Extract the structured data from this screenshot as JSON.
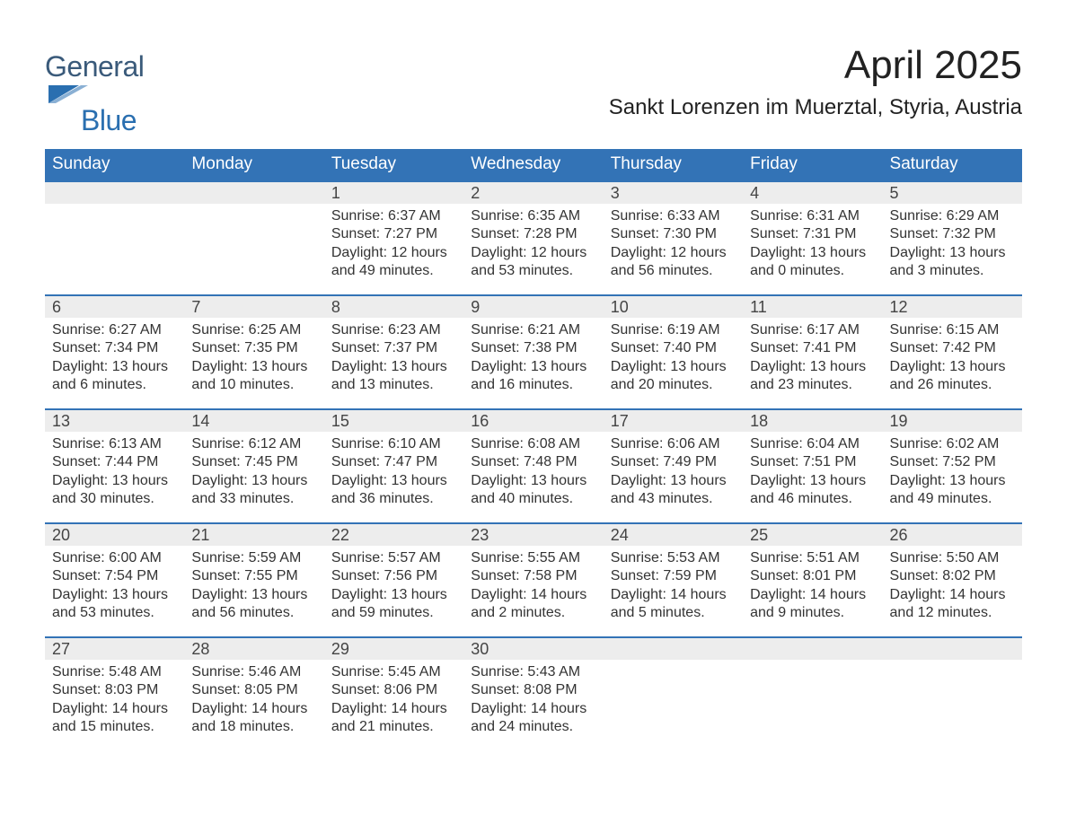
{
  "logo": {
    "text1": "General",
    "text2": "Blue",
    "triangle_color": "#2a6fb0"
  },
  "title": "April 2025",
  "location": "Sankt Lorenzen im Muerztal, Styria, Austria",
  "colors": {
    "header_bg": "#3373b6",
    "header_text": "#ffffff",
    "daynum_bg": "#ededed",
    "body_text": "#333333",
    "week_border": "#3373b6",
    "background": "#ffffff"
  },
  "typography": {
    "title_fontsize": 44,
    "location_fontsize": 24,
    "dayheader_fontsize": 19,
    "daynum_fontsize": 18,
    "body_fontsize": 16
  },
  "calendar": {
    "type": "table",
    "day_headers": [
      "Sunday",
      "Monday",
      "Tuesday",
      "Wednesday",
      "Thursday",
      "Friday",
      "Saturday"
    ],
    "weeks": [
      [
        null,
        null,
        {
          "n": "1",
          "sunrise": "Sunrise: 6:37 AM",
          "sunset": "Sunset: 7:27 PM",
          "dl1": "Daylight: 12 hours",
          "dl2": "and 49 minutes."
        },
        {
          "n": "2",
          "sunrise": "Sunrise: 6:35 AM",
          "sunset": "Sunset: 7:28 PM",
          "dl1": "Daylight: 12 hours",
          "dl2": "and 53 minutes."
        },
        {
          "n": "3",
          "sunrise": "Sunrise: 6:33 AM",
          "sunset": "Sunset: 7:30 PM",
          "dl1": "Daylight: 12 hours",
          "dl2": "and 56 minutes."
        },
        {
          "n": "4",
          "sunrise": "Sunrise: 6:31 AM",
          "sunset": "Sunset: 7:31 PM",
          "dl1": "Daylight: 13 hours",
          "dl2": "and 0 minutes."
        },
        {
          "n": "5",
          "sunrise": "Sunrise: 6:29 AM",
          "sunset": "Sunset: 7:32 PM",
          "dl1": "Daylight: 13 hours",
          "dl2": "and 3 minutes."
        }
      ],
      [
        {
          "n": "6",
          "sunrise": "Sunrise: 6:27 AM",
          "sunset": "Sunset: 7:34 PM",
          "dl1": "Daylight: 13 hours",
          "dl2": "and 6 minutes."
        },
        {
          "n": "7",
          "sunrise": "Sunrise: 6:25 AM",
          "sunset": "Sunset: 7:35 PM",
          "dl1": "Daylight: 13 hours",
          "dl2": "and 10 minutes."
        },
        {
          "n": "8",
          "sunrise": "Sunrise: 6:23 AM",
          "sunset": "Sunset: 7:37 PM",
          "dl1": "Daylight: 13 hours",
          "dl2": "and 13 minutes."
        },
        {
          "n": "9",
          "sunrise": "Sunrise: 6:21 AM",
          "sunset": "Sunset: 7:38 PM",
          "dl1": "Daylight: 13 hours",
          "dl2": "and 16 minutes."
        },
        {
          "n": "10",
          "sunrise": "Sunrise: 6:19 AM",
          "sunset": "Sunset: 7:40 PM",
          "dl1": "Daylight: 13 hours",
          "dl2": "and 20 minutes."
        },
        {
          "n": "11",
          "sunrise": "Sunrise: 6:17 AM",
          "sunset": "Sunset: 7:41 PM",
          "dl1": "Daylight: 13 hours",
          "dl2": "and 23 minutes."
        },
        {
          "n": "12",
          "sunrise": "Sunrise: 6:15 AM",
          "sunset": "Sunset: 7:42 PM",
          "dl1": "Daylight: 13 hours",
          "dl2": "and 26 minutes."
        }
      ],
      [
        {
          "n": "13",
          "sunrise": "Sunrise: 6:13 AM",
          "sunset": "Sunset: 7:44 PM",
          "dl1": "Daylight: 13 hours",
          "dl2": "and 30 minutes."
        },
        {
          "n": "14",
          "sunrise": "Sunrise: 6:12 AM",
          "sunset": "Sunset: 7:45 PM",
          "dl1": "Daylight: 13 hours",
          "dl2": "and 33 minutes."
        },
        {
          "n": "15",
          "sunrise": "Sunrise: 6:10 AM",
          "sunset": "Sunset: 7:47 PM",
          "dl1": "Daylight: 13 hours",
          "dl2": "and 36 minutes."
        },
        {
          "n": "16",
          "sunrise": "Sunrise: 6:08 AM",
          "sunset": "Sunset: 7:48 PM",
          "dl1": "Daylight: 13 hours",
          "dl2": "and 40 minutes."
        },
        {
          "n": "17",
          "sunrise": "Sunrise: 6:06 AM",
          "sunset": "Sunset: 7:49 PM",
          "dl1": "Daylight: 13 hours",
          "dl2": "and 43 minutes."
        },
        {
          "n": "18",
          "sunrise": "Sunrise: 6:04 AM",
          "sunset": "Sunset: 7:51 PM",
          "dl1": "Daylight: 13 hours",
          "dl2": "and 46 minutes."
        },
        {
          "n": "19",
          "sunrise": "Sunrise: 6:02 AM",
          "sunset": "Sunset: 7:52 PM",
          "dl1": "Daylight: 13 hours",
          "dl2": "and 49 minutes."
        }
      ],
      [
        {
          "n": "20",
          "sunrise": "Sunrise: 6:00 AM",
          "sunset": "Sunset: 7:54 PM",
          "dl1": "Daylight: 13 hours",
          "dl2": "and 53 minutes."
        },
        {
          "n": "21",
          "sunrise": "Sunrise: 5:59 AM",
          "sunset": "Sunset: 7:55 PM",
          "dl1": "Daylight: 13 hours",
          "dl2": "and 56 minutes."
        },
        {
          "n": "22",
          "sunrise": "Sunrise: 5:57 AM",
          "sunset": "Sunset: 7:56 PM",
          "dl1": "Daylight: 13 hours",
          "dl2": "and 59 minutes."
        },
        {
          "n": "23",
          "sunrise": "Sunrise: 5:55 AM",
          "sunset": "Sunset: 7:58 PM",
          "dl1": "Daylight: 14 hours",
          "dl2": "and 2 minutes."
        },
        {
          "n": "24",
          "sunrise": "Sunrise: 5:53 AM",
          "sunset": "Sunset: 7:59 PM",
          "dl1": "Daylight: 14 hours",
          "dl2": "and 5 minutes."
        },
        {
          "n": "25",
          "sunrise": "Sunrise: 5:51 AM",
          "sunset": "Sunset: 8:01 PM",
          "dl1": "Daylight: 14 hours",
          "dl2": "and 9 minutes."
        },
        {
          "n": "26",
          "sunrise": "Sunrise: 5:50 AM",
          "sunset": "Sunset: 8:02 PM",
          "dl1": "Daylight: 14 hours",
          "dl2": "and 12 minutes."
        }
      ],
      [
        {
          "n": "27",
          "sunrise": "Sunrise: 5:48 AM",
          "sunset": "Sunset: 8:03 PM",
          "dl1": "Daylight: 14 hours",
          "dl2": "and 15 minutes."
        },
        {
          "n": "28",
          "sunrise": "Sunrise: 5:46 AM",
          "sunset": "Sunset: 8:05 PM",
          "dl1": "Daylight: 14 hours",
          "dl2": "and 18 minutes."
        },
        {
          "n": "29",
          "sunrise": "Sunrise: 5:45 AM",
          "sunset": "Sunset: 8:06 PM",
          "dl1": "Daylight: 14 hours",
          "dl2": "and 21 minutes."
        },
        {
          "n": "30",
          "sunrise": "Sunrise: 5:43 AM",
          "sunset": "Sunset: 8:08 PM",
          "dl1": "Daylight: 14 hours",
          "dl2": "and 24 minutes."
        },
        null,
        null,
        null
      ]
    ]
  }
}
